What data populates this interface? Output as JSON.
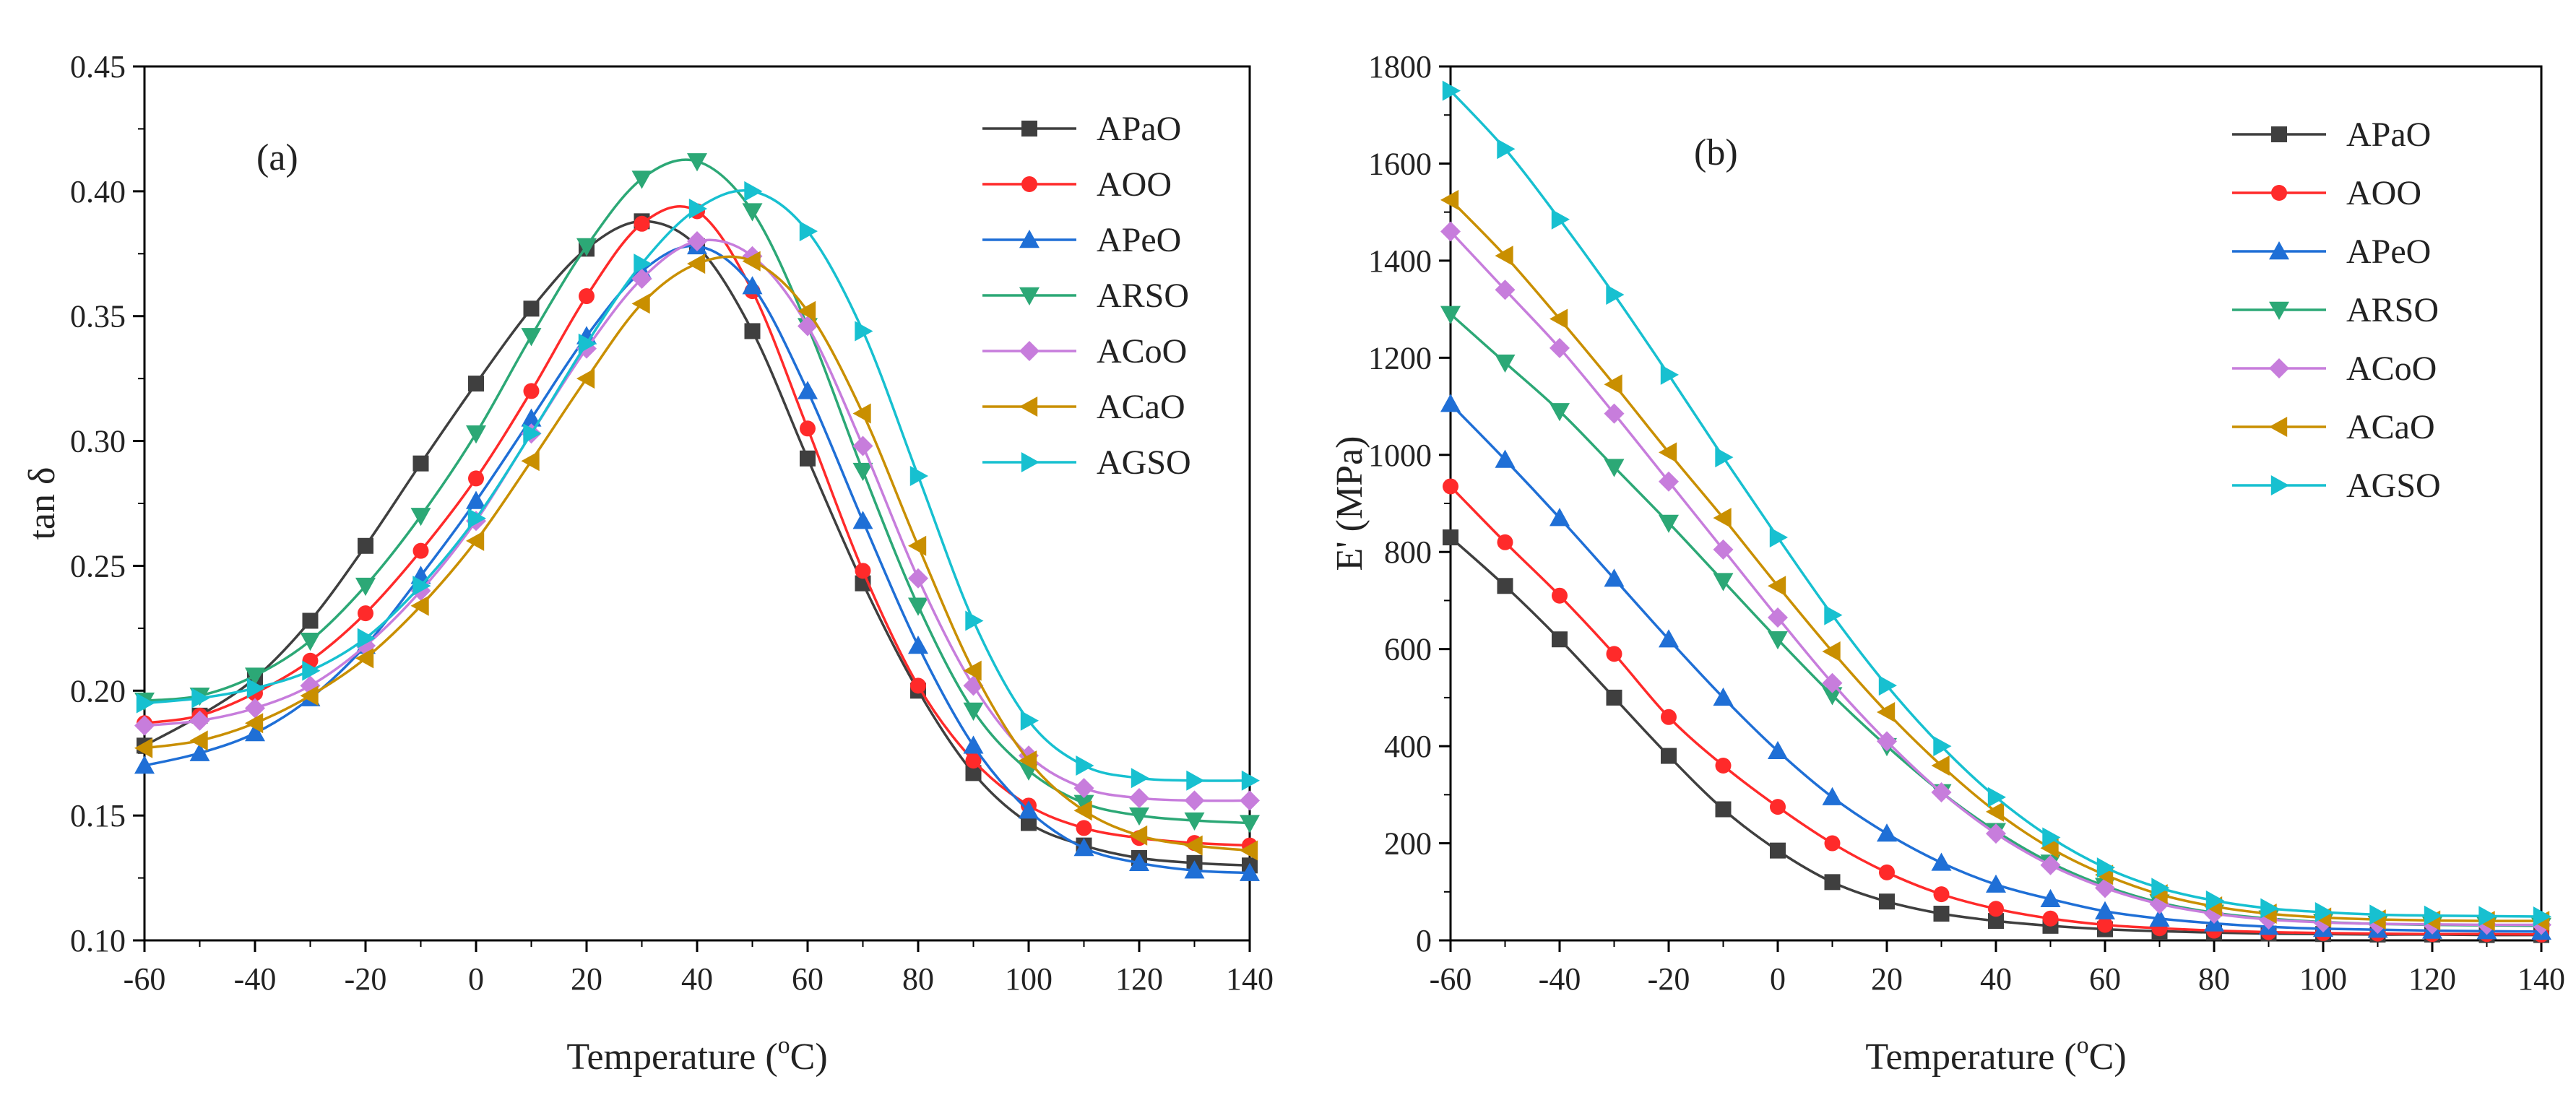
{
  "chart_data": [
    {
      "type": "line",
      "panel": "(a)",
      "xlabel": "Temperature (oC)",
      "xlabel_main": "Temperature (",
      "xlabel_sup": "o",
      "xlabel_end": "C)",
      "ylabel": "tan δ",
      "xlim": [
        -60,
        140
      ],
      "ylim": [
        0.1,
        0.45
      ],
      "xticks": [
        "-60",
        "-40",
        "-20",
        "0",
        "20",
        "40",
        "60",
        "80",
        "100",
        "120",
        "140"
      ],
      "yticks": [
        "0.10",
        "0.15",
        "0.20",
        "0.25",
        "0.30",
        "0.35",
        "0.40",
        "0.45"
      ],
      "x": [
        -60,
        -50,
        -40,
        -30,
        -20,
        -10,
        0,
        10,
        20,
        30,
        40,
        50,
        60,
        70,
        80,
        90,
        100,
        110,
        120,
        130,
        140
      ],
      "series": [
        {
          "name": "APaO",
          "color": "#3f3f3f",
          "marker": "square",
          "values": [
            0.178,
            0.19,
            0.205,
            0.228,
            0.258,
            0.291,
            0.323,
            0.353,
            0.377,
            0.388,
            0.378,
            0.344,
            0.293,
            0.243,
            0.2,
            0.167,
            0.147,
            0.138,
            0.133,
            0.131,
            0.13
          ]
        },
        {
          "name": "AOO",
          "color": "#ff2a2a",
          "marker": "circle",
          "values": [
            0.187,
            0.19,
            0.199,
            0.212,
            0.231,
            0.256,
            0.285,
            0.32,
            0.358,
            0.387,
            0.392,
            0.36,
            0.305,
            0.248,
            0.202,
            0.172,
            0.154,
            0.145,
            0.141,
            0.139,
            0.138
          ]
        },
        {
          "name": "APeO",
          "color": "#1f6fd6",
          "marker": "triangle-up",
          "values": [
            0.17,
            0.175,
            0.183,
            0.197,
            0.218,
            0.246,
            0.276,
            0.309,
            0.342,
            0.368,
            0.378,
            0.362,
            0.32,
            0.268,
            0.218,
            0.178,
            0.152,
            0.137,
            0.131,
            0.128,
            0.127
          ]
        },
        {
          "name": "ARSO",
          "color": "#2ca876",
          "marker": "triangle-down",
          "values": [
            0.196,
            0.198,
            0.206,
            0.22,
            0.242,
            0.27,
            0.303,
            0.342,
            0.378,
            0.405,
            0.412,
            0.392,
            0.346,
            0.288,
            0.234,
            0.192,
            0.168,
            0.155,
            0.15,
            0.148,
            0.147
          ]
        },
        {
          "name": "ACoO",
          "color": "#c77ddc",
          "marker": "diamond",
          "values": [
            0.186,
            0.188,
            0.193,
            0.202,
            0.218,
            0.24,
            0.268,
            0.303,
            0.337,
            0.365,
            0.38,
            0.374,
            0.346,
            0.298,
            0.245,
            0.202,
            0.174,
            0.161,
            0.157,
            0.156,
            0.156
          ]
        },
        {
          "name": "ACaO",
          "color": "#c98f00",
          "marker": "triangle-left",
          "values": [
            0.177,
            0.18,
            0.187,
            0.198,
            0.213,
            0.234,
            0.26,
            0.292,
            0.325,
            0.355,
            0.371,
            0.372,
            0.352,
            0.311,
            0.258,
            0.208,
            0.172,
            0.152,
            0.142,
            0.138,
            0.136
          ]
        },
        {
          "name": "AGSO",
          "color": "#17c0d0",
          "marker": "triangle-right",
          "values": [
            0.195,
            0.197,
            0.201,
            0.208,
            0.221,
            0.242,
            0.269,
            0.303,
            0.339,
            0.371,
            0.393,
            0.4,
            0.384,
            0.344,
            0.286,
            0.228,
            0.188,
            0.17,
            0.165,
            0.164,
            0.164
          ]
        }
      ]
    },
    {
      "type": "line",
      "panel": "(b)",
      "xlabel": "Temperature (oC)",
      "xlabel_main": "Temperature (",
      "xlabel_sup": "o",
      "xlabel_end": "C)",
      "ylabel": "E' (MPa)",
      "xlim": [
        -60,
        140
      ],
      "ylim": [
        0,
        1800
      ],
      "xticks": [
        "-60",
        "-40",
        "-20",
        "0",
        "20",
        "40",
        "60",
        "80",
        "100",
        "120",
        "140"
      ],
      "yticks": [
        "0",
        "200",
        "400",
        "600",
        "800",
        "1000",
        "1200",
        "1400",
        "1600",
        "1800"
      ],
      "x": [
        -60,
        -50,
        -40,
        -30,
        -20,
        -10,
        0,
        10,
        20,
        30,
        40,
        50,
        60,
        70,
        80,
        90,
        100,
        110,
        120,
        130,
        140
      ],
      "series": [
        {
          "name": "APaO",
          "color": "#3f3f3f",
          "marker": "square",
          "values": [
            830,
            730,
            620,
            500,
            380,
            270,
            185,
            120,
            80,
            55,
            40,
            30,
            23,
            19,
            16,
            14,
            13,
            12,
            12,
            11,
            11
          ]
        },
        {
          "name": "AOO",
          "color": "#ff2a2a",
          "marker": "circle",
          "values": [
            935,
            820,
            710,
            590,
            460,
            360,
            275,
            200,
            140,
            95,
            65,
            45,
            32,
            25,
            20,
            17,
            15,
            14,
            13,
            13,
            12
          ]
        },
        {
          "name": "APeO",
          "color": "#1f6fd6",
          "marker": "triangle-up",
          "values": [
            1105,
            990,
            870,
            745,
            620,
            500,
            390,
            295,
            220,
            160,
            115,
            85,
            60,
            45,
            35,
            28,
            24,
            22,
            20,
            19,
            18
          ]
        },
        {
          "name": "ARSO",
          "color": "#2ca876",
          "marker": "triangle-down",
          "values": [
            1290,
            1190,
            1090,
            975,
            860,
            740,
            620,
            505,
            400,
            305,
            225,
            160,
            112,
            78,
            57,
            45,
            38,
            34,
            32,
            31,
            30
          ]
        },
        {
          "name": "ACoO",
          "color": "#c77ddc",
          "marker": "diamond",
          "values": [
            1460,
            1340,
            1220,
            1085,
            945,
            805,
            665,
            530,
            410,
            305,
            220,
            155,
            108,
            75,
            55,
            43,
            37,
            34,
            33,
            32,
            32
          ]
        },
        {
          "name": "ACaO",
          "color": "#c98f00",
          "marker": "triangle-left",
          "values": [
            1525,
            1410,
            1280,
            1145,
            1005,
            870,
            730,
            595,
            470,
            360,
            265,
            190,
            135,
            95,
            70,
            55,
            47,
            43,
            41,
            40,
            40
          ]
        },
        {
          "name": "AGSO",
          "color": "#17c0d0",
          "marker": "triangle-right",
          "values": [
            1750,
            1630,
            1485,
            1330,
            1165,
            995,
            830,
            670,
            525,
            400,
            295,
            212,
            150,
            108,
            82,
            66,
            58,
            53,
            51,
            50,
            49
          ]
        }
      ]
    }
  ]
}
